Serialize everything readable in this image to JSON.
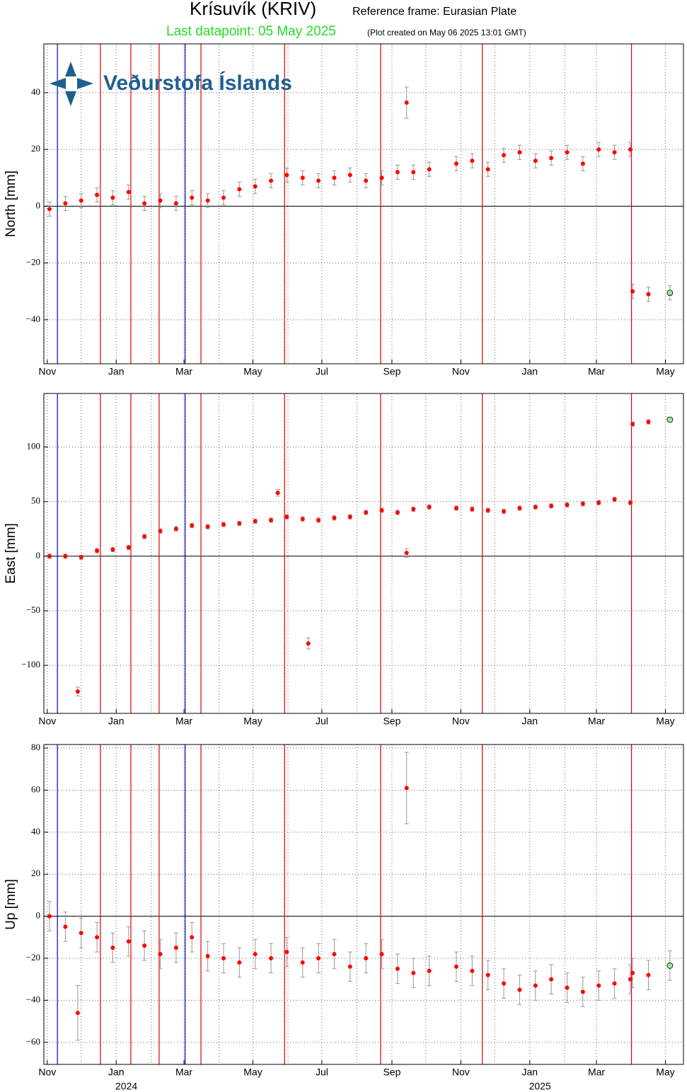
{
  "header": {
    "title": "Krísuvík (KRIV)",
    "reference": "Reference frame: Eurasian Plate",
    "last_datapoint": "Last datapoint: 05 May 2025",
    "created": "(Plot created on May 06 2025 13:01 GMT)"
  },
  "logo": "Veðurstofa Íslands",
  "event_lines": [
    {
      "x": "2023-11-10",
      "color": "#0000cc"
    },
    {
      "x": "2023-12-18",
      "color": "#e00000"
    },
    {
      "x": "2024-01-14",
      "color": "#e00000"
    },
    {
      "x": "2024-02-08",
      "color": "#e00000"
    },
    {
      "x": "2024-03-02",
      "color": "#0000cc"
    },
    {
      "x": "2024-03-16",
      "color": "#e00000"
    },
    {
      "x": "2024-05-29",
      "color": "#e00000"
    },
    {
      "x": "2024-08-22",
      "color": "#e00000"
    },
    {
      "x": "2024-11-20",
      "color": "#e00000"
    },
    {
      "x": "2025-04-01",
      "color": "#e00000"
    }
  ],
  "chart_data": [
    {
      "type": "scatter",
      "ylabel": "North [mm]",
      "color": "#ff0000",
      "last_color": "#90ee90",
      "error_color": "#999999",
      "zero_line": true,
      "grid": true,
      "xlim": [
        "2023-10-29",
        "2025-05-17"
      ],
      "ylim": [
        -55.5,
        57.2
      ],
      "xticks": [
        {
          "value": "2023-11-01",
          "label": "Nov"
        },
        {
          "value": "2024-01-01",
          "label": "Jan"
        },
        {
          "value": "2024-03-01",
          "label": "Mar"
        },
        {
          "value": "2024-05-01",
          "label": "May"
        },
        {
          "value": "2024-07-01",
          "label": "Jul"
        },
        {
          "value": "2024-09-01",
          "label": "Sep"
        },
        {
          "value": "2024-11-01",
          "label": "Nov"
        },
        {
          "value": "2025-01-01",
          "label": "Jan"
        },
        {
          "value": "2025-03-01",
          "label": "Mar"
        },
        {
          "value": "2025-05-01",
          "label": "May"
        }
      ],
      "xgrid": [
        "2023-12-01",
        "2024-02-01",
        "2024-04-01",
        "2024-06-01",
        "2024-08-01",
        "2024-10-01",
        "2024-12-01",
        "2025-02-01",
        "2025-04-01"
      ],
      "yticks": [
        {
          "value": -40,
          "label": "−40"
        },
        {
          "value": -20,
          "label": "−20"
        },
        0,
        20,
        40
      ],
      "x": [
        "2023-11-03",
        "2023-11-17",
        "2023-12-01",
        "2023-12-15",
        "2023-12-29",
        "2024-01-12",
        "2024-01-26",
        "2024-02-09",
        "2024-02-23",
        "2024-03-08",
        "2024-03-22",
        "2024-04-05",
        "2024-04-19",
        "2024-05-03",
        "2024-05-17",
        "2024-05-31",
        "2024-06-14",
        "2024-06-28",
        "2024-07-12",
        "2024-07-26",
        "2024-08-09",
        "2024-08-23",
        "2024-09-06",
        "2024-09-14",
        "2024-09-20",
        "2024-10-04",
        "2024-10-28",
        "2024-11-11",
        "2024-11-25",
        "2024-12-09",
        "2024-12-23",
        "2025-01-06",
        "2025-01-20",
        "2025-02-03",
        "2025-02-17",
        "2025-03-03",
        "2025-03-17",
        "2025-03-31",
        "2025-04-02",
        "2025-04-16",
        "2025-05-05"
      ],
      "values": [
        -1,
        1,
        2,
        4,
        3,
        5,
        1,
        2,
        1,
        3,
        2,
        3,
        6,
        7,
        9,
        11,
        10,
        9,
        10,
        11,
        9,
        10,
        12,
        36.5,
        12,
        13,
        15,
        16,
        13,
        18,
        19,
        16,
        17,
        19,
        15,
        20,
        19,
        20,
        -30,
        -31,
        -30.5
      ],
      "errors": [
        2.5,
        2.5,
        2.5,
        2.5,
        2.5,
        2.5,
        2.5,
        2.5,
        2.5,
        2.5,
        2.5,
        2.5,
        2.5,
        2.5,
        2.5,
        2.5,
        2.5,
        2.5,
        2.5,
        2.5,
        2.5,
        2.5,
        2.5,
        5.5,
        2.5,
        2.5,
        2.5,
        2.5,
        2.5,
        2.5,
        2.5,
        2.5,
        2.5,
        2.5,
        2.5,
        2.5,
        2.5,
        2.5,
        2.5,
        2.5,
        2.5
      ]
    },
    {
      "type": "scatter",
      "ylabel": "East [mm]",
      "color": "#ff0000",
      "last_color": "#90ee90",
      "error_color": "#999999",
      "zero_line": true,
      "grid": true,
      "xlim": [
        "2023-10-29",
        "2025-05-17"
      ],
      "ylim": [
        -144,
        149
      ],
      "xticks": [
        {
          "value": "2023-11-01",
          "label": "Nov"
        },
        {
          "value": "2024-01-01",
          "label": "Jan"
        },
        {
          "value": "2024-03-01",
          "label": "Mar"
        },
        {
          "value": "2024-05-01",
          "label": "May"
        },
        {
          "value": "2024-07-01",
          "label": "Jul"
        },
        {
          "value": "2024-09-01",
          "label": "Sep"
        },
        {
          "value": "2024-11-01",
          "label": "Nov"
        },
        {
          "value": "2025-01-01",
          "label": "Jan"
        },
        {
          "value": "2025-03-01",
          "label": "Mar"
        },
        {
          "value": "2025-05-01",
          "label": "May"
        }
      ],
      "xgrid": [
        "2023-12-01",
        "2024-02-01",
        "2024-04-01",
        "2024-06-01",
        "2024-08-01",
        "2024-10-01",
        "2024-12-01",
        "2025-02-01",
        "2025-04-01"
      ],
      "yticks": [
        {
          "value": -100,
          "label": "−100"
        },
        {
          "value": -50,
          "label": "−50"
        },
        0,
        50,
        100
      ],
      "x": [
        "2023-11-03",
        "2023-11-17",
        "2023-11-28",
        "2023-12-01",
        "2023-12-15",
        "2023-12-29",
        "2024-01-12",
        "2024-01-26",
        "2024-02-09",
        "2024-02-23",
        "2024-03-08",
        "2024-03-22",
        "2024-04-05",
        "2024-04-19",
        "2024-05-03",
        "2024-05-17",
        "2024-05-23",
        "2024-05-31",
        "2024-06-14",
        "2024-06-19",
        "2024-06-28",
        "2024-07-12",
        "2024-07-26",
        "2024-08-09",
        "2024-08-23",
        "2024-09-06",
        "2024-09-14",
        "2024-09-20",
        "2024-10-04",
        "2024-10-28",
        "2024-11-11",
        "2024-11-25",
        "2024-12-09",
        "2024-12-23",
        "2025-01-06",
        "2025-01-20",
        "2025-02-03",
        "2025-02-17",
        "2025-03-03",
        "2025-03-17",
        "2025-03-31",
        "2025-04-02",
        "2025-04-16",
        "2025-05-05"
      ],
      "values": [
        0,
        0,
        -124,
        -1,
        5,
        6,
        8,
        18,
        23,
        25,
        28,
        27,
        29,
        30,
        32,
        33,
        58,
        36,
        34,
        -80,
        33,
        35,
        36,
        40,
        42,
        40,
        3,
        43,
        45,
        44,
        43,
        42,
        41,
        44,
        45,
        46,
        47,
        48,
        49,
        52,
        49,
        121,
        123,
        125
      ],
      "errors": [
        2,
        2,
        4,
        2,
        2,
        2,
        2,
        2,
        2,
        2,
        2,
        2,
        2,
        2,
        2,
        2,
        3,
        2,
        2,
        5,
        2,
        2,
        2,
        2,
        2,
        2,
        4,
        2,
        2,
        2,
        2,
        2,
        2,
        2,
        2,
        2,
        2,
        2,
        2,
        2,
        2,
        2,
        2,
        2
      ]
    },
    {
      "type": "scatter",
      "ylabel": "Up [mm]",
      "color": "#ff0000",
      "last_color": "#90ee90",
      "error_color": "#999999",
      "zero_line": true,
      "grid": true,
      "xlim": [
        "2023-10-29",
        "2025-05-17"
      ],
      "ylim": [
        -70.5,
        81.7
      ],
      "xticks": [
        {
          "value": "2023-11-01",
          "label": "Nov"
        },
        {
          "value": "2024-01-01",
          "label": "Jan"
        },
        {
          "value": "2024-03-01",
          "label": "Mar"
        },
        {
          "value": "2024-05-01",
          "label": "May"
        },
        {
          "value": "2024-07-01",
          "label": "Jul"
        },
        {
          "value": "2024-09-01",
          "label": "Sep"
        },
        {
          "value": "2024-11-01",
          "label": "Nov"
        },
        {
          "value": "2025-01-01",
          "label": "Jan"
        },
        {
          "value": "2025-03-01",
          "label": "Mar"
        },
        {
          "value": "2025-05-01",
          "label": "May"
        }
      ],
      "xgrid": [
        "2023-12-01",
        "2024-02-01",
        "2024-04-01",
        "2024-06-01",
        "2024-08-01",
        "2024-10-01",
        "2024-12-01",
        "2025-02-01",
        "2025-04-01"
      ],
      "year_labels": [
        {
          "value": "2024-01-10",
          "label": "2024"
        },
        {
          "value": "2025-01-10",
          "label": "2025"
        }
      ],
      "yticks": [
        {
          "value": -60,
          "label": "−60"
        },
        {
          "value": -40,
          "label": "−40"
        },
        {
          "value": -20,
          "label": "−20"
        },
        0,
        20,
        40,
        60,
        80
      ],
      "x": [
        "2023-11-03",
        "2023-11-17",
        "2023-11-28",
        "2023-12-01",
        "2023-12-15",
        "2023-12-29",
        "2024-01-12",
        "2024-01-26",
        "2024-02-09",
        "2024-02-23",
        "2024-03-08",
        "2024-03-22",
        "2024-04-05",
        "2024-04-19",
        "2024-05-03",
        "2024-05-17",
        "2024-05-31",
        "2024-06-14",
        "2024-06-28",
        "2024-07-12",
        "2024-07-26",
        "2024-08-09",
        "2024-08-23",
        "2024-09-06",
        "2024-09-14",
        "2024-09-20",
        "2024-10-04",
        "2024-10-28",
        "2024-11-11",
        "2024-11-25",
        "2024-12-09",
        "2024-12-23",
        "2025-01-06",
        "2025-01-20",
        "2025-02-03",
        "2025-02-17",
        "2025-03-03",
        "2025-03-17",
        "2025-03-31",
        "2025-04-02",
        "2025-04-16",
        "2025-05-05"
      ],
      "values": [
        0,
        -5,
        -46,
        -8,
        -10,
        -15,
        -12,
        -14,
        -18,
        -15,
        -10,
        -19,
        -20,
        -22,
        -18,
        -20,
        -17,
        -22,
        -20,
        -18,
        -24,
        -20,
        -18,
        -25,
        61,
        -27,
        -26,
        -24,
        -26,
        -28,
        -32,
        -35,
        -33,
        -30,
        -34,
        -36,
        -33,
        -32,
        -30,
        -27,
        -28,
        -23.5
      ],
      "errors": [
        7,
        7,
        13,
        7,
        7,
        7,
        7,
        7,
        7,
        7,
        7,
        7,
        7,
        7,
        7,
        7,
        7,
        7,
        7,
        7,
        7,
        7,
        7,
        7,
        17,
        7,
        7,
        7,
        7,
        7,
        7,
        7,
        7,
        7,
        7,
        7,
        7,
        7,
        7,
        7,
        7,
        7
      ]
    }
  ]
}
